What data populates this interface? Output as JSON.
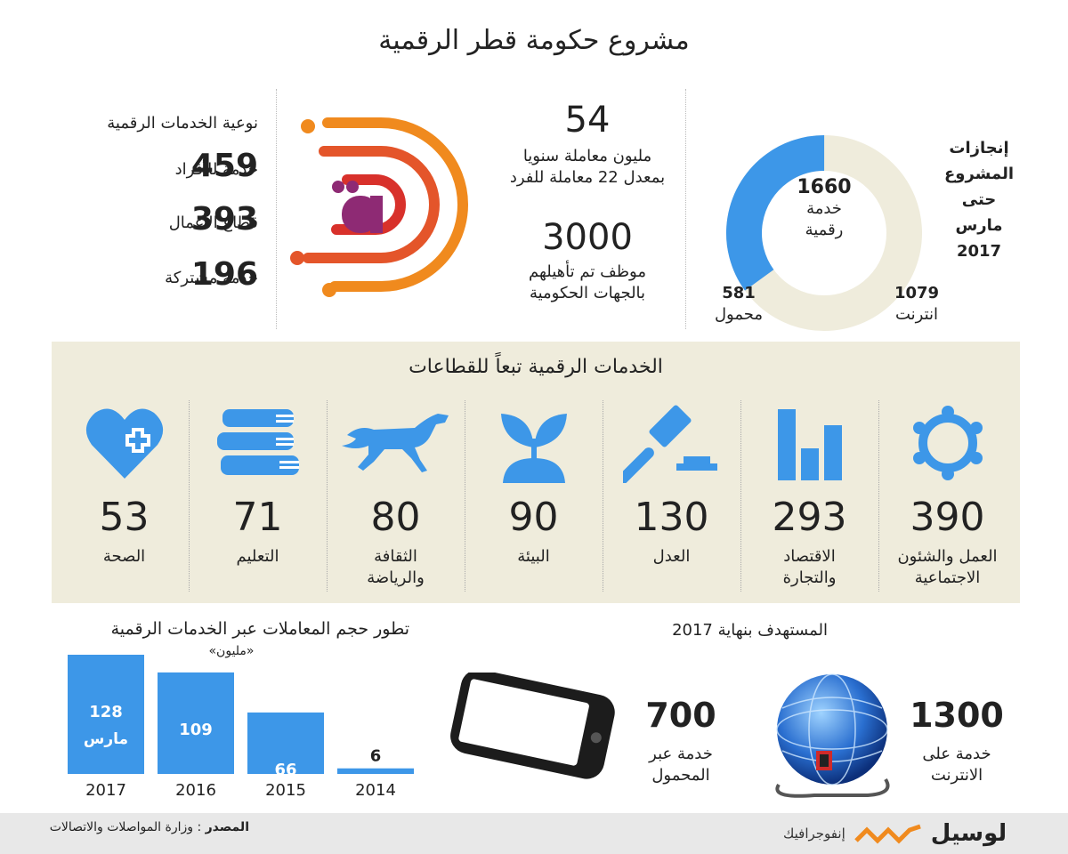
{
  "title": "مشروع حكومة قطر الرقمية",
  "achievements": {
    "label_lines": [
      "إنجازات",
      "المشروع",
      "حتى",
      "مارس",
      "2017"
    ],
    "total_num": "1660",
    "total_label_1": "خدمة",
    "total_label_2": "رقمية",
    "internet_num": "1079",
    "internet_label": "انترنت",
    "mobile_num": "581",
    "mobile_label": "محمول",
    "colors": {
      "internet": "#efecdc",
      "mobile": "#3d97e8"
    }
  },
  "stats": {
    "transactions_num": "54",
    "transactions_line1": "مليون معاملة سنويا",
    "transactions_line2": "بمعدل 22 معاملة للفرد",
    "employees_num": "3000",
    "employees_line1": "موظف تم تأهيلهم",
    "employees_line2": "بالجهات الحكومية"
  },
  "service_types": {
    "title": "نوعية الخدمات الرقمية",
    "items": [
      {
        "num": "459",
        "label": "خدمة للأفراد"
      },
      {
        "num": "393",
        "label": "قطاع الأعمال"
      },
      {
        "num": "196",
        "label": "خدمة مشتركة"
      }
    ]
  },
  "sectors": {
    "title": "الخدمات الرقمية تبعاً للقطاعات",
    "items": [
      {
        "num": "390",
        "label1": "العمل والشئون",
        "label2": "الاجتماعية",
        "icon": "people-circle-icon"
      },
      {
        "num": "293",
        "label1": "الاقتصاد",
        "label2": "والتجارة",
        "icon": "bar-chart-icon"
      },
      {
        "num": "130",
        "label1": "العدل",
        "label2": "",
        "icon": "gavel-icon"
      },
      {
        "num": "90",
        "label1": "البيئة",
        "label2": "",
        "icon": "plant-icon"
      },
      {
        "num": "80",
        "label1": "الثقافة",
        "label2": "والرياضة",
        "icon": "horse-icon"
      },
      {
        "num": "71",
        "label1": "التعليم",
        "label2": "",
        "icon": "books-icon"
      },
      {
        "num": "53",
        "label1": "الصحة",
        "label2": "",
        "icon": "heart-plus-icon"
      }
    ]
  },
  "chart_data": {
    "type": "bar",
    "title": "تطور حجم المعاملات عبر الخدمات الرقمية",
    "unit": "«مليون»",
    "categories": [
      "2017",
      "2016",
      "2015",
      "2014"
    ],
    "values": [
      128,
      109,
      66,
      6
    ],
    "value_labels": [
      "128",
      "109",
      "66",
      "6"
    ],
    "extra_label_2017": "مارس",
    "color": "#3d97e8"
  },
  "targets": {
    "title": "المستهدف بنهاية 2017",
    "internet_num": "1300",
    "internet_label1": "خدمة على",
    "internet_label2": "الانترنت",
    "mobile_num": "700",
    "mobile_label1": "خدمة عبر",
    "mobile_label2": "المحمول"
  },
  "footer": {
    "source_label": "المصدر",
    "source_value": ": وزارة المواصلات والاتصالات",
    "brand_name": "لوسيل",
    "brand_sub": "إنفوجرافيك"
  }
}
